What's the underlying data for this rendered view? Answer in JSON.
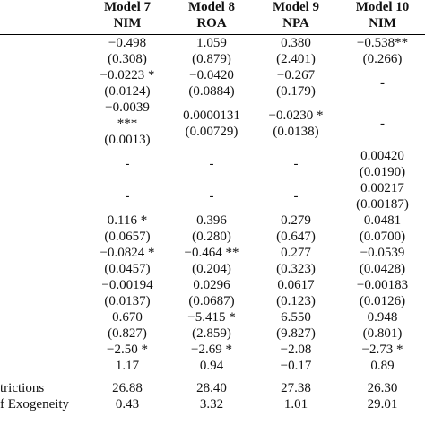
{
  "header": {
    "columns": [
      [
        "Model 7",
        "NIM"
      ],
      [
        "Model 8",
        "ROA"
      ],
      [
        "Model 9",
        "NPA"
      ],
      [
        "Model 10",
        "NIM"
      ]
    ]
  },
  "rows": [
    {
      "cells": [
        [
          "−0.498",
          "(0.308)"
        ],
        [
          "1.059",
          "(0.879)"
        ],
        [
          "0.380",
          "(2.401)"
        ],
        [
          "−0.538**",
          "(0.266)"
        ]
      ]
    },
    {
      "cells": [
        [
          "−0.0223 *",
          "(0.0124)"
        ],
        [
          "−0.0420",
          "(0.0884)"
        ],
        [
          "−0.267",
          "(0.179)"
        ],
        [
          "-"
        ]
      ]
    },
    {
      "cells": [
        [
          "−0.0039",
          "***",
          "(0.0013)"
        ],
        [
          "0.0000131",
          "(0.00729)"
        ],
        [
          "−0.0230 *",
          "(0.0138)"
        ],
        [
          "-"
        ]
      ]
    },
    {
      "cells": [
        [
          "-"
        ],
        [
          "-"
        ],
        [
          "-"
        ],
        [
          "0.00420",
          "(0.0190)"
        ]
      ]
    },
    {
      "cells": [
        [
          "-"
        ],
        [
          "-"
        ],
        [
          "-"
        ],
        [
          "0.00217",
          "(0.00187)"
        ]
      ]
    },
    {
      "cells": [
        [
          "0.116 *",
          "(0.0657)"
        ],
        [
          "0.396",
          "(0.280)"
        ],
        [
          "0.279",
          "(0.647)"
        ],
        [
          "0.0481",
          "(0.0700)"
        ]
      ]
    },
    {
      "cells": [
        [
          "−0.0824 *",
          "(0.0457)"
        ],
        [
          "−0.464 **",
          "(0.204)"
        ],
        [
          "0.277",
          "(0.323)"
        ],
        [
          "−0.0539",
          "(0.0428)"
        ]
      ]
    },
    {
      "cells": [
        [
          "−0.00194",
          "(0.0137)"
        ],
        [
          "0.0296",
          "(0.0687)"
        ],
        [
          "0.0617",
          "(0.123)"
        ],
        [
          "−0.00183",
          "(0.0126)"
        ]
      ]
    },
    {
      "cells": [
        [
          "0.670",
          "(0.827)"
        ],
        [
          "−5.415 *",
          "(2.859)"
        ],
        [
          "6.550",
          "(9.827)"
        ],
        [
          "0.948",
          "(0.801)"
        ]
      ]
    },
    {
      "cells": [
        [
          "−2.50 *"
        ],
        [
          "−2.69 *"
        ],
        [
          "−2.08"
        ],
        [
          "−2.73 *"
        ]
      ]
    },
    {
      "cells": [
        [
          "1.17"
        ],
        [
          "0.94"
        ],
        [
          "−0.17"
        ],
        [
          "0.89"
        ]
      ]
    },
    {
      "label": "trictions",
      "cells": [
        [
          "26.88"
        ],
        [
          "28.40"
        ],
        [
          "27.38"
        ],
        [
          "26.30"
        ]
      ]
    },
    {
      "label": "f Exogeneity",
      "cells": [
        [
          "0.43"
        ],
        [
          "3.32"
        ],
        [
          "1.01"
        ],
        [
          "29.01"
        ]
      ]
    }
  ]
}
